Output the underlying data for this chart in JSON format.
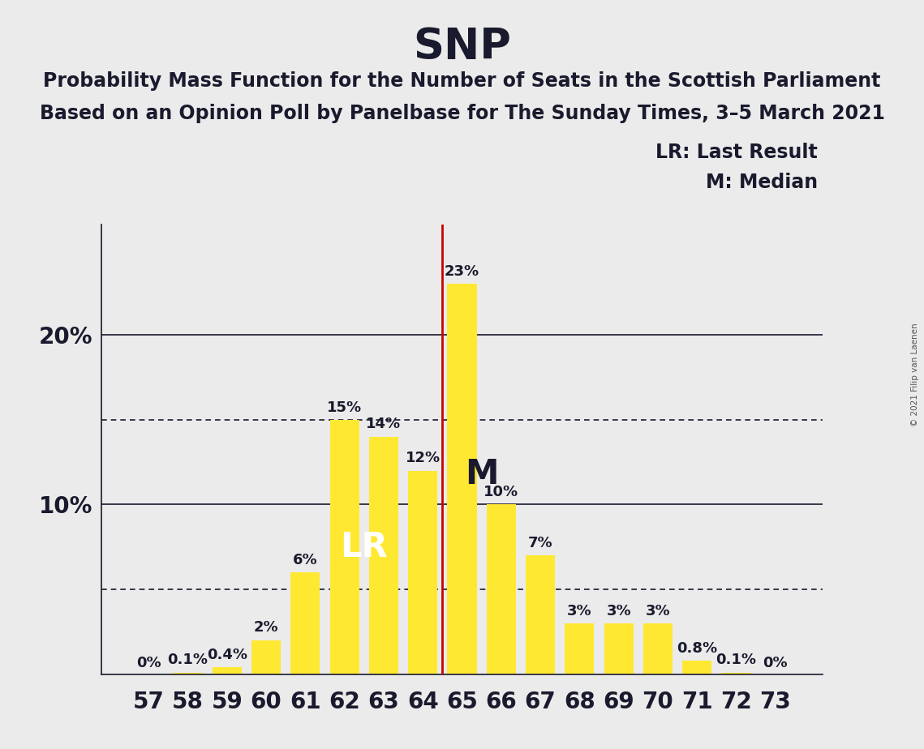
{
  "title": "SNP",
  "subtitle1": "Probability Mass Function for the Number of Seats in the Scottish Parliament",
  "subtitle2": "Based on an Opinion Poll by Panelbase for The Sunday Times, 3–5 March 2021",
  "copyright": "© 2021 Filip van Laenen",
  "legend_lr": "LR: Last Result",
  "legend_m": "M: Median",
  "seats": [
    57,
    58,
    59,
    60,
    61,
    62,
    63,
    64,
    65,
    66,
    67,
    68,
    69,
    70,
    71,
    72,
    73
  ],
  "probabilities": [
    0.0,
    0.1,
    0.4,
    2.0,
    6.0,
    15.0,
    14.0,
    12.0,
    23.0,
    10.0,
    7.0,
    3.0,
    3.0,
    3.0,
    0.8,
    0.1,
    0.0
  ],
  "labels": [
    "0%",
    "0.1%",
    "0.4%",
    "2%",
    "6%",
    "15%",
    "14%",
    "12%",
    "23%",
    "10%",
    "7%",
    "3%",
    "3%",
    "3%",
    "0.8%",
    "0.1%",
    "0%"
  ],
  "bar_color": "#FFE832",
  "lr_seat": 62,
  "vline_x": 64.5,
  "median_seat": 65,
  "vline_color": "#CC0000",
  "background_color": "#EBEBEB",
  "dotted_lines": [
    5.0,
    15.0
  ],
  "solid_lines": [
    10.0,
    20.0
  ],
  "title_fontsize": 38,
  "subtitle_fontsize": 17,
  "label_fontsize": 13,
  "tick_fontsize": 20,
  "ytick_fontsize": 20,
  "lr_label_fontsize": 30,
  "m_label_fontsize": 30,
  "legend_fontsize": 17,
  "ylim_max": 26.5
}
